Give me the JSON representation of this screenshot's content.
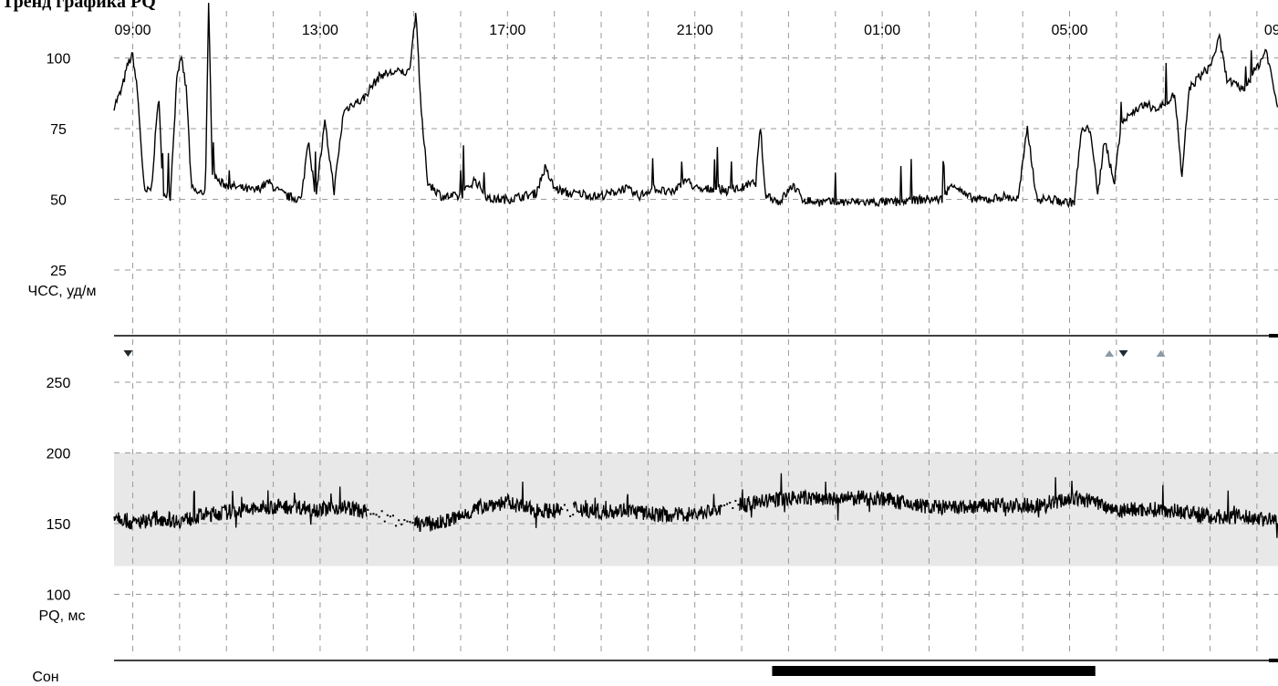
{
  "heading": "Тренд графика PQ",
  "chart_data": [
    {
      "type": "line",
      "ylabel": "ЧСС, уд/м",
      "ylim": [
        0,
        120
      ],
      "yticks": [
        100,
        75,
        50,
        25
      ],
      "x_ticks": [
        "09:00",
        "13:00",
        "17:00",
        "21:00",
        "01:00",
        "05:00",
        "09"
      ],
      "x_range_hours": [
        8.6,
        33.45
      ],
      "series": [
        {
          "points": [
            [
              8.6,
              83
            ],
            [
              8.75,
              88
            ],
            [
              8.9,
              98
            ],
            [
              9.0,
              101
            ],
            [
              9.1,
              88
            ],
            [
              9.25,
              52
            ],
            [
              9.4,
              54
            ],
            [
              9.55,
              87
            ],
            [
              9.65,
              52
            ],
            [
              9.8,
              51
            ],
            [
              9.95,
              96
            ],
            [
              10.05,
              99
            ],
            [
              10.15,
              88
            ],
            [
              10.25,
              54
            ],
            [
              10.4,
              52
            ],
            [
              10.55,
              53
            ],
            [
              10.62,
              118
            ],
            [
              10.7,
              60
            ],
            [
              10.85,
              56
            ],
            [
              11.0,
              55
            ],
            [
              11.3,
              54
            ],
            [
              11.6,
              53
            ],
            [
              11.9,
              56
            ],
            [
              12.1,
              53
            ],
            [
              12.3,
              51
            ],
            [
              12.6,
              50
            ],
            [
              12.75,
              72
            ],
            [
              12.9,
              50
            ],
            [
              13.1,
              77
            ],
            [
              13.3,
              53
            ],
            [
              13.5,
              81
            ],
            [
              13.7,
              84
            ],
            [
              13.9,
              85
            ],
            [
              14.1,
              90
            ],
            [
              14.3,
              94
            ],
            [
              14.6,
              95
            ],
            [
              14.9,
              95
            ],
            [
              15.05,
              117
            ],
            [
              15.15,
              82
            ],
            [
              15.3,
              56
            ],
            [
              15.6,
              51
            ],
            [
              16.0,
              51
            ],
            [
              16.3,
              57
            ],
            [
              16.6,
              50
            ],
            [
              17.0,
              50
            ],
            [
              17.3,
              51
            ],
            [
              17.6,
              52
            ],
            [
              17.8,
              61
            ],
            [
              18.0,
              54
            ],
            [
              18.3,
              52
            ],
            [
              18.6,
              52
            ],
            [
              18.9,
              51
            ],
            [
              19.2,
              52
            ],
            [
              19.5,
              54
            ],
            [
              19.8,
              51
            ],
            [
              20.1,
              54
            ],
            [
              20.3,
              53
            ],
            [
              20.5,
              52
            ],
            [
              20.8,
              57
            ],
            [
              21.1,
              53
            ],
            [
              21.4,
              54
            ],
            [
              21.7,
              53
            ],
            [
              22.0,
              54
            ],
            [
              22.3,
              56
            ],
            [
              22.4,
              76
            ],
            [
              22.5,
              52
            ],
            [
              22.8,
              49
            ],
            [
              23.1,
              55
            ],
            [
              23.3,
              50
            ],
            [
              23.6,
              49
            ],
            [
              23.9,
              49
            ],
            [
              24.3,
              49
            ],
            [
              24.8,
              49
            ],
            [
              25.3,
              49
            ],
            [
              25.9,
              50
            ],
            [
              26.3,
              50
            ],
            [
              26.5,
              56
            ],
            [
              26.8,
              51
            ],
            [
              27.0,
              50
            ],
            [
              27.3,
              50
            ],
            [
              27.6,
              51
            ],
            [
              27.9,
              50
            ],
            [
              28.1,
              75
            ],
            [
              28.3,
              50
            ],
            [
              28.6,
              50
            ],
            [
              28.9,
              49
            ],
            [
              29.1,
              49
            ],
            [
              29.25,
              74
            ],
            [
              29.45,
              75
            ],
            [
              29.6,
              51
            ],
            [
              29.75,
              72
            ],
            [
              29.95,
              55
            ],
            [
              30.1,
              77
            ],
            [
              30.3,
              80
            ],
            [
              30.5,
              83
            ],
            [
              30.7,
              83
            ],
            [
              30.9,
              82
            ],
            [
              31.1,
              85
            ],
            [
              31.25,
              87
            ],
            [
              31.4,
              57
            ],
            [
              31.55,
              89
            ],
            [
              31.75,
              93
            ],
            [
              32.0,
              97
            ],
            [
              32.2,
              107
            ],
            [
              32.35,
              93
            ],
            [
              32.55,
              90
            ],
            [
              32.75,
              89
            ],
            [
              32.9,
              94
            ],
            [
              33.05,
              98
            ],
            [
              33.2,
              103
            ],
            [
              33.35,
              90
            ],
            [
              33.45,
              82
            ]
          ]
        }
      ]
    },
    {
      "type": "line",
      "ylabel": "PQ, мс",
      "ylim": [
        50,
        300
      ],
      "yticks": [
        250,
        200,
        150,
        100
      ],
      "normal_band": [
        120,
        200
      ],
      "series": [
        {
          "points": [
            [
              8.6,
              157
            ],
            [
              9.0,
              150
            ],
            [
              9.5,
              154
            ],
            [
              10.0,
              152
            ],
            [
              10.5,
              156
            ],
            [
              11.0,
              158
            ],
            [
              11.5,
              160
            ],
            [
              12.0,
              162
            ],
            [
              12.5,
              162
            ],
            [
              13.0,
              160
            ],
            [
              13.5,
              162
            ],
            [
              14.0,
              158
            ],
            [
              14.5,
              155
            ],
            [
              15.0,
              150
            ],
            [
              15.5,
              150
            ],
            [
              16.0,
              155
            ],
            [
              16.5,
              163
            ],
            [
              17.0,
              165
            ],
            [
              17.5,
              160
            ],
            [
              18.0,
              159
            ],
            [
              18.5,
              161
            ],
            [
              19.0,
              158
            ],
            [
              19.5,
              160
            ],
            [
              20.0,
              157
            ],
            [
              20.5,
              156
            ],
            [
              21.0,
              157
            ],
            [
              21.5,
              160
            ],
            [
              22.0,
              163
            ],
            [
              22.5,
              166
            ],
            [
              23.0,
              168
            ],
            [
              23.5,
              168
            ],
            [
              24.0,
              167
            ],
            [
              24.5,
              168
            ],
            [
              25.0,
              168
            ],
            [
              25.5,
              164
            ],
            [
              26.0,
              162
            ],
            [
              26.5,
              161
            ],
            [
              27.0,
              162
            ],
            [
              27.5,
              163
            ],
            [
              28.0,
              163
            ],
            [
              28.5,
              163
            ],
            [
              29.0,
              168
            ],
            [
              29.5,
              166
            ],
            [
              30.0,
              160
            ],
            [
              30.5,
              160
            ],
            [
              31.0,
              160
            ],
            [
              31.5,
              158
            ],
            [
              32.0,
              155
            ],
            [
              32.5,
              155
            ],
            [
              33.0,
              154
            ],
            [
              33.45,
              152
            ]
          ]
        }
      ],
      "gaps": [
        [
          14.0,
          15.0
        ],
        [
          18.2,
          18.4
        ],
        [
          21.55,
          21.95
        ]
      ],
      "event_markers": [
        {
          "time": 8.9,
          "direction": "down"
        },
        {
          "time": 29.85,
          "direction": "up"
        },
        {
          "time": 30.15,
          "direction": "down"
        },
        {
          "time": 30.95,
          "direction": "up"
        }
      ]
    },
    {
      "type": "bar",
      "ylabel": "Сон",
      "intervals": [
        [
          22.65,
          29.55
        ]
      ]
    }
  ],
  "colors": {
    "line": "#000000",
    "grid": "#999999",
    "band": "#e8e8e8",
    "marker_dark": "#1f2a33",
    "marker_light": "#8d9aa6"
  }
}
